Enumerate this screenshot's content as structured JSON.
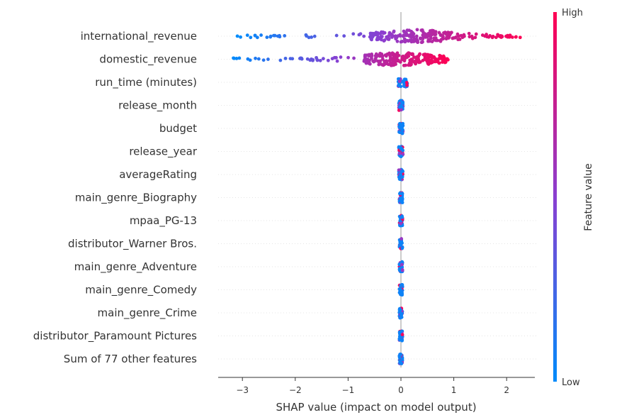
{
  "chart_data": {
    "type": "scatter",
    "subtype": "shap-beeswarm",
    "title": "",
    "xlabel": "SHAP value (impact on model output)",
    "xlim": [
      -3.35,
      2.45
    ],
    "xticks": [
      -3,
      -2,
      -1,
      0,
      1,
      2
    ],
    "xtick_labels": [
      "−3",
      "−2",
      "−1",
      "0",
      "1",
      "2"
    ],
    "features": [
      {
        "name": "international_revenue",
        "min": -3.1,
        "max": 2.3,
        "q_low": -0.6,
        "q_high": 1.1,
        "spread": 0.26
      },
      {
        "name": "domestic_revenue",
        "min": -3.2,
        "max": 0.9,
        "q_low": -0.7,
        "q_high": 0.65,
        "spread": 0.26
      },
      {
        "name": "run_time (minutes)",
        "min": -0.05,
        "max": 0.12,
        "q_low": -0.02,
        "q_high": 0.06,
        "spread": 0.18
      },
      {
        "name": "release_month",
        "min": -0.04,
        "max": 0.04,
        "q_low": -0.02,
        "q_high": 0.02,
        "spread": 0.2
      },
      {
        "name": "budget",
        "min": -0.04,
        "max": 0.04,
        "q_low": -0.02,
        "q_high": 0.02,
        "spread": 0.2
      },
      {
        "name": "release_year",
        "min": -0.04,
        "max": 0.04,
        "q_low": -0.02,
        "q_high": 0.02,
        "spread": 0.2
      },
      {
        "name": "averageRating",
        "min": -0.04,
        "max": 0.04,
        "q_low": -0.02,
        "q_high": 0.02,
        "spread": 0.2
      },
      {
        "name": "main_genre_Biography",
        "min": -0.03,
        "max": 0.03,
        "q_low": -0.01,
        "q_high": 0.01,
        "spread": 0.2
      },
      {
        "name": "mpaa_PG-13",
        "min": -0.03,
        "max": 0.03,
        "q_low": -0.01,
        "q_high": 0.01,
        "spread": 0.2
      },
      {
        "name": "distributor_Warner Bros.",
        "min": -0.03,
        "max": 0.03,
        "q_low": -0.01,
        "q_high": 0.01,
        "spread": 0.2
      },
      {
        "name": "main_genre_Adventure",
        "min": -0.03,
        "max": 0.03,
        "q_low": -0.01,
        "q_high": 0.01,
        "spread": 0.2
      },
      {
        "name": "main_genre_Comedy",
        "min": -0.03,
        "max": 0.03,
        "q_low": -0.01,
        "q_high": 0.01,
        "spread": 0.2
      },
      {
        "name": "main_genre_Crime",
        "min": -0.03,
        "max": 0.03,
        "q_low": -0.01,
        "q_high": 0.01,
        "spread": 0.2
      },
      {
        "name": "distributor_Paramount Pictures",
        "min": -0.03,
        "max": 0.03,
        "q_low": -0.01,
        "q_high": 0.01,
        "spread": 0.2
      },
      {
        "name": "Sum of 77 other features",
        "min": -0.03,
        "max": 0.03,
        "q_low": -0.01,
        "q_high": 0.01,
        "spread": 0.2
      }
    ],
    "colorbar": {
      "title": "Feature value",
      "high_label": "High",
      "low_label": "Low",
      "low_color": "#008bfb",
      "high_color": "#ff0052",
      "mid_color": "#8a3fd1"
    },
    "zero_line_color": "#999999",
    "grid": false,
    "legend": "right (colorbar)"
  }
}
